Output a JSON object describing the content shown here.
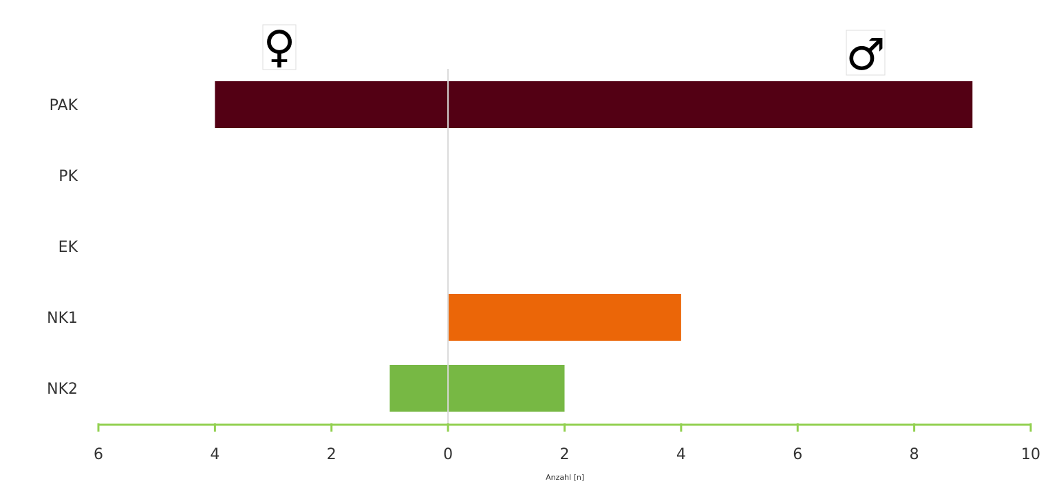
{
  "chart_data": {
    "type": "bar",
    "orientation": "horizontal",
    "layout": "diverging",
    "categories": [
      "PAK",
      "PK",
      "EK",
      "NK1",
      "NK2"
    ],
    "series": [
      {
        "name": "♀",
        "side": "left",
        "values": [
          4,
          0,
          0,
          0,
          1
        ]
      },
      {
        "name": "♂",
        "side": "right",
        "values": [
          9,
          0,
          0,
          4,
          2
        ]
      }
    ],
    "category_colors": [
      "#530014",
      "#530014",
      "#530014",
      "#EB6608",
      "#77B844"
    ],
    "xlabel": "Anzahl [n]",
    "xlim": [
      -6,
      10
    ],
    "x_ticks": [
      -6,
      -4,
      -2,
      0,
      2,
      4,
      6,
      8,
      10
    ],
    "x_tick_labels": [
      "6",
      "4",
      "2",
      "0",
      "2",
      "4",
      "6",
      "8",
      "10"
    ],
    "axis_color": "#92D050",
    "zero_line_color": "#D9D9D9",
    "grid": false,
    "legend": "symbols above bars"
  }
}
